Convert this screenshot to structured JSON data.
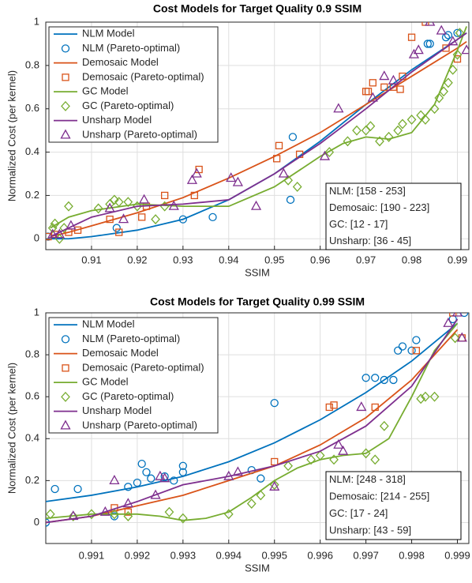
{
  "chart_data": [
    {
      "type": "combo",
      "title": "Cost Models for Target Quality 0.9 SSIM",
      "x_label": "SSIM",
      "y_label": "Normalized Cost (per kernel)",
      "xlim": [
        0.9,
        0.9925
      ],
      "ylim": [
        -0.05,
        1
      ],
      "xticks": [
        0.91,
        0.92,
        0.93,
        0.94,
        0.95,
        0.96,
        0.97,
        0.98,
        0.99
      ],
      "yticks": [
        0,
        0.2,
        0.4,
        0.6,
        0.8,
        1
      ],
      "grid": true,
      "legend": "upper-left",
      "annotations": [
        "NLM: [158 - 253]",
        "Demosaic: [190 - 223]",
        "GC: [12 - 17]",
        "Unsharp: [36 - 45]"
      ],
      "series": [
        {
          "name": "NLM Model",
          "type": "line",
          "color": "#0072bd",
          "x": [
            0.901,
            0.905,
            0.91,
            0.92,
            0.93,
            0.94,
            0.95,
            0.96,
            0.97,
            0.98,
            0.99,
            0.992
          ],
          "values": [
            0,
            0,
            0.01,
            0.04,
            0.09,
            0.18,
            0.3,
            0.45,
            0.62,
            0.78,
            0.92,
            0.95
          ]
        },
        {
          "name": "NLM (Pareto-optimal)",
          "type": "scatter",
          "marker": "circle",
          "color": "#0072bd",
          "x": [
            0.9005,
            0.9155,
            0.93,
            0.9365,
            0.9535,
            0.954,
            0.9835,
            0.984,
            0.9875,
            0.988,
            0.99
          ],
          "values": [
            0.01,
            0.05,
            0.09,
            0.1,
            0.18,
            0.47,
            0.9,
            0.9,
            0.93,
            0.94,
            0.95
          ]
        },
        {
          "name": "Demosaic Model",
          "type": "line",
          "color": "#d95319",
          "x": [
            0.901,
            0.905,
            0.91,
            0.92,
            0.93,
            0.94,
            0.95,
            0.96,
            0.97,
            0.98,
            0.99,
            0.992
          ],
          "values": [
            0.01,
            0.03,
            0.06,
            0.12,
            0.19,
            0.28,
            0.38,
            0.49,
            0.62,
            0.75,
            0.88,
            0.91
          ]
        },
        {
          "name": "Demosaic (Pareto-optimal)",
          "type": "scatter",
          "marker": "square",
          "color": "#d95319",
          "x": [
            0.9005,
            0.902,
            0.905,
            0.907,
            0.914,
            0.916,
            0.921,
            0.922,
            0.926,
            0.9325,
            0.9335,
            0.9505,
            0.951,
            0.9555,
            0.97,
            0.9705,
            0.9715,
            0.974,
            0.976,
            0.9775,
            0.978,
            0.98,
            0.983,
            0.9875,
            0.99
          ],
          "values": [
            0.01,
            0.02,
            0.03,
            0.04,
            0.09,
            0.03,
            0.1,
            0.15,
            0.2,
            0.2,
            0.32,
            0.37,
            0.43,
            0.39,
            0.68,
            0.68,
            0.72,
            0.7,
            0.7,
            0.69,
            0.75,
            0.93,
            1,
            0.88,
            0.83
          ]
        },
        {
          "name": "GC Model",
          "type": "line",
          "color": "#77ac30",
          "x": [
            0.901,
            0.905,
            0.91,
            0.92,
            0.93,
            0.94,
            0.95,
            0.96,
            0.965,
            0.97,
            0.975,
            0.98,
            0.985,
            0.99,
            0.992
          ],
          "values": [
            0.05,
            0.1,
            0.13,
            0.16,
            0.15,
            0.15,
            0.24,
            0.38,
            0.44,
            0.47,
            0.46,
            0.49,
            0.62,
            0.87,
            0.98
          ]
        },
        {
          "name": "GC (Pareto-optimal)",
          "type": "scatter",
          "marker": "diamond",
          "color": "#77ac30",
          "x": [
            0.9015,
            0.902,
            0.903,
            0.904,
            0.905,
            0.9115,
            0.914,
            0.915,
            0.916,
            0.918,
            0.92,
            0.924,
            0.926,
            0.953,
            0.955,
            0.962,
            0.966,
            0.968,
            0.97,
            0.971,
            0.973,
            0.975,
            0.977,
            0.978,
            0.98,
            0.982,
            0.983,
            0.985,
            0.986,
            0.987,
            0.988,
            0.989,
            0.99,
            0.9905
          ],
          "values": [
            0.05,
            0.07,
            0,
            0.05,
            0.15,
            0.14,
            0.16,
            0.18,
            0.17,
            0.17,
            0.15,
            0.09,
            0.15,
            0.27,
            0.24,
            0.4,
            0.45,
            0.5,
            0.5,
            0.52,
            0.45,
            0.47,
            0.5,
            0.53,
            0.55,
            0.57,
            0.55,
            0.6,
            0.65,
            0.68,
            0.72,
            0.78,
            0.85,
            0.95
          ]
        },
        {
          "name": "Unsharp Model",
          "type": "line",
          "color": "#7e2f8e",
          "x": [
            0.901,
            0.905,
            0.91,
            0.92,
            0.93,
            0.94,
            0.95,
            0.96,
            0.97,
            0.98,
            0.99,
            0.992
          ],
          "values": [
            0.01,
            0.05,
            0.1,
            0.15,
            0.16,
            0.18,
            0.3,
            0.44,
            0.6,
            0.77,
            0.92,
            0.95
          ]
        },
        {
          "name": "Unsharp (Pareto-optimal)",
          "type": "scatter",
          "marker": "triangle",
          "color": "#7e2f8e",
          "x": [
            0.9015,
            0.903,
            0.9055,
            0.914,
            0.917,
            0.9215,
            0.928,
            0.932,
            0.933,
            0.9405,
            0.942,
            0.946,
            0.952,
            0.961,
            0.964,
            0.9715,
            0.974,
            0.976,
            0.9805,
            0.9815,
            0.984,
            0.9865,
            0.989,
            0.992
          ],
          "values": [
            0.02,
            0.02,
            0.06,
            0.14,
            0.09,
            0.18,
            0.15,
            0.27,
            0.3,
            0.28,
            0.26,
            0.15,
            0.3,
            0.38,
            0.6,
            0.65,
            0.75,
            0.73,
            0.85,
            0.87,
            1,
            0.96,
            0.91,
            0.87
          ]
        }
      ]
    },
    {
      "type": "combo",
      "title": "Cost Models for Target Quality 0.99 SSIM",
      "x_label": "SSIM",
      "y_label": "Normalized Cost (per kernel)",
      "xlim": [
        0.99,
        0.99925
      ],
      "ylim": [
        -0.1,
        1
      ],
      "xticks": [
        0.991,
        0.992,
        0.993,
        0.994,
        0.995,
        0.996,
        0.997,
        0.998,
        0.999
      ],
      "yticks": [
        0,
        0.2,
        0.4,
        0.6,
        0.8,
        1
      ],
      "grid": true,
      "legend": "upper-left",
      "annotations": [
        "NLM: [248 - 318]",
        "Demosaic: [214 - 255]",
        "GC: [17 - 24]",
        "Unsharp: [43 - 59]"
      ],
      "series": [
        {
          "name": "NLM Model",
          "type": "line",
          "color": "#0072bd",
          "x": [
            0.99,
            0.991,
            0.992,
            0.993,
            0.994,
            0.995,
            0.996,
            0.997,
            0.998,
            0.999
          ],
          "values": [
            0.1,
            0.13,
            0.17,
            0.22,
            0.29,
            0.38,
            0.49,
            0.62,
            0.77,
            0.95
          ]
        },
        {
          "name": "NLM (Pareto-optimal)",
          "type": "scatter",
          "marker": "circle",
          "color": "#0072bd",
          "x": [
            0.99,
            0.9902,
            0.9907,
            0.9915,
            0.9918,
            0.992,
            0.9921,
            0.9922,
            0.9923,
            0.9926,
            0.9928,
            0.993,
            0.993,
            0.9945,
            0.9947,
            0.995,
            0.997,
            0.9972,
            0.9974,
            0.9976,
            0.9977,
            0.9978,
            0.998,
            0.9981,
            0.9989,
            0.99915
          ],
          "values": [
            0,
            0.16,
            0.16,
            0.03,
            0.17,
            0.19,
            0.28,
            0.24,
            0.21,
            0.22,
            0.2,
            0.27,
            0.24,
            0.25,
            0.21,
            0.57,
            0.69,
            0.69,
            0.68,
            0.68,
            0.82,
            0.84,
            0.82,
            0.87,
            0.97,
            1
          ]
        },
        {
          "name": "Demosaic Model",
          "type": "line",
          "color": "#d95319",
          "x": [
            0.99,
            0.991,
            0.992,
            0.993,
            0.994,
            0.995,
            0.996,
            0.997,
            0.998,
            0.999
          ],
          "values": [
            0,
            0.03,
            0.08,
            0.13,
            0.2,
            0.27,
            0.37,
            0.5,
            0.68,
            0.92
          ]
        },
        {
          "name": "Demosaic (Pareto-optimal)",
          "type": "scatter",
          "marker": "square",
          "color": "#d95319",
          "x": [
            0.9915,
            0.9918,
            0.995,
            0.9962,
            0.9963,
            0.9972,
            0.9981,
            0.9989,
            0.9991
          ],
          "values": [
            0.07,
            0.05,
            0.29,
            0.55,
            0.56,
            0.55,
            0.82,
            1,
            0.88
          ]
        },
        {
          "name": "GC Model",
          "type": "line",
          "color": "#77ac30",
          "x": [
            0.99,
            0.9905,
            0.991,
            0.9915,
            0.992,
            0.9925,
            0.993,
            0.9935,
            0.994,
            0.9945,
            0.995,
            0.9955,
            0.996,
            0.9965,
            0.997,
            0.9975,
            0.998,
            0.9985,
            0.999
          ],
          "values": [
            0.02,
            0.03,
            0.04,
            0.04,
            0.04,
            0.03,
            0.01,
            0.02,
            0.05,
            0.12,
            0.2,
            0.26,
            0.3,
            0.32,
            0.33,
            0.4,
            0.6,
            0.82,
            0.95
          ]
        },
        {
          "name": "GC (Pareto-optimal)",
          "type": "scatter",
          "marker": "diamond",
          "color": "#77ac30",
          "x": [
            0.9901,
            0.9906,
            0.991,
            0.9915,
            0.9918,
            0.9927,
            0.993,
            0.994,
            0.9945,
            0.9947,
            0.995,
            0.9953,
            0.9958,
            0.996,
            0.9963,
            0.997,
            0.9972,
            0.9974,
            0.9982,
            0.9983,
            0.9985,
            0.99895
          ],
          "values": [
            0.04,
            0.03,
            0.04,
            0.04,
            0.03,
            0.05,
            0.02,
            0.04,
            0.09,
            0.13,
            0.18,
            0.27,
            0.3,
            0.32,
            0.3,
            0.33,
            0.3,
            0.46,
            0.59,
            0.6,
            0.6,
            0.88
          ]
        },
        {
          "name": "Unsharp Model",
          "type": "line",
          "color": "#7e2f8e",
          "x": [
            0.99,
            0.991,
            0.992,
            0.993,
            0.994,
            0.995,
            0.996,
            0.997,
            0.998,
            0.999
          ],
          "values": [
            0,
            0.03,
            0.1,
            0.18,
            0.22,
            0.27,
            0.34,
            0.46,
            0.65,
            0.97
          ]
        },
        {
          "name": "Unsharp (Pareto-optimal)",
          "type": "scatter",
          "marker": "triangle",
          "color": "#7e2f8e",
          "x": [
            0.9906,
            0.9913,
            0.9915,
            0.9918,
            0.9924,
            0.9925,
            0.9926,
            0.994,
            0.9942,
            0.995,
            0.9964,
            0.9965,
            0.9969,
            0.9988,
            0.999,
            0.9991
          ],
          "values": [
            0.03,
            0.05,
            0.2,
            0.09,
            0.13,
            0.22,
            0.21,
            0.22,
            0.24,
            0.17,
            0.37,
            0.34,
            0.55,
            0.95,
            1,
            0.88
          ]
        }
      ]
    }
  ]
}
